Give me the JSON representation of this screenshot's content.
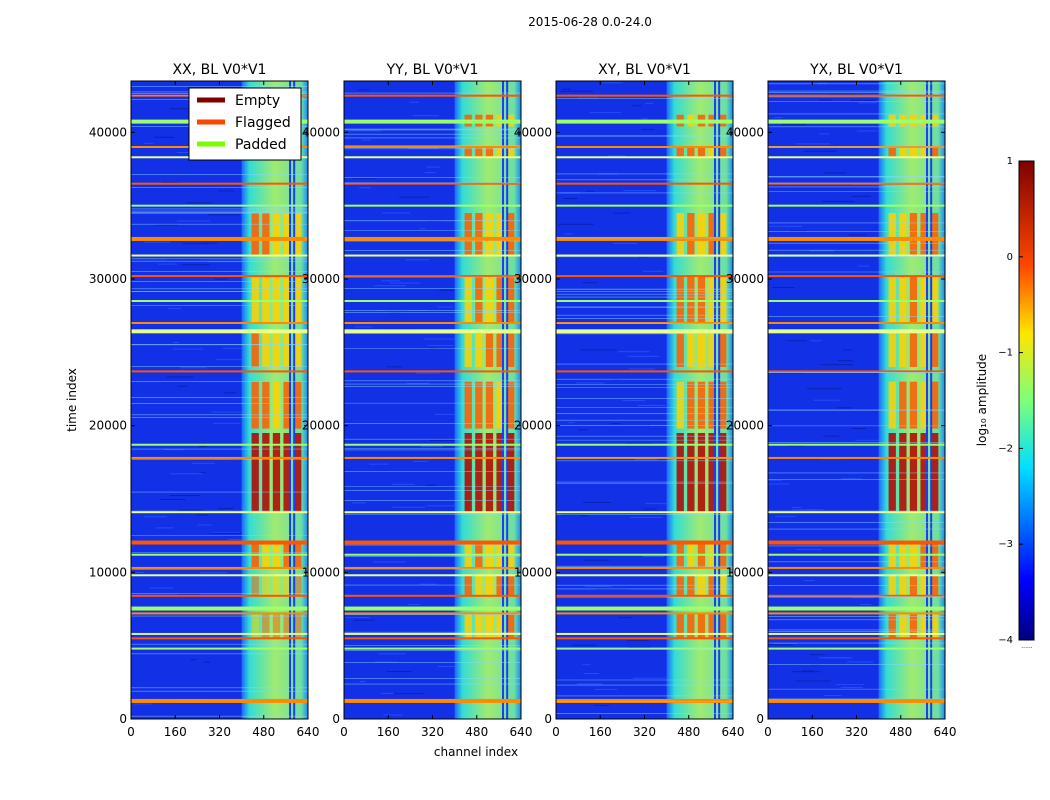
{
  "figure": {
    "suptitle": "2015-06-28 0.0-24.0",
    "ylabel": "time index",
    "xlabel": "channel index"
  },
  "chart_data": {
    "type": "heatmap",
    "panels": [
      {
        "title": "XX, BL V0*V1",
        "polarization": "XX"
      },
      {
        "title": "YY, BL V0*V1",
        "polarization": "YY"
      },
      {
        "title": "XY, BL V0*V1",
        "polarization": "XY"
      },
      {
        "title": "YX, BL V0*V1",
        "polarization": "YX"
      }
    ],
    "xlim": [
      0,
      640
    ],
    "ylim": [
      0,
      43500
    ],
    "xticks": [
      0,
      160,
      320,
      480,
      640
    ],
    "yticks": [
      0,
      10000,
      20000,
      30000,
      40000
    ],
    "yticks_shown_on": "all panels",
    "legend": {
      "placement": "top-right of first panel",
      "entries": [
        {
          "label": "Empty",
          "color": "#800000"
        },
        {
          "label": "Flagged",
          "color": "#ff4500"
        },
        {
          "label": "Padded",
          "color": "#7cfc00"
        }
      ]
    },
    "colorbar": {
      "label": "log₁₀ amplitude",
      "range": [
        -4,
        1
      ],
      "ticks": [
        "1",
        "0",
        "−1",
        "−2",
        "−3",
        "−4"
      ],
      "colormap": "jet",
      "footnote": "......"
    },
    "signal_band_channels": [
      400,
      640
    ],
    "notes_channel_lines": [
      575,
      590
    ],
    "flagged_time_rows": [
      1300,
      4800,
      5500,
      5800,
      7200,
      7600,
      8400,
      9800,
      10300,
      11200,
      12100,
      14100,
      17800,
      18700,
      23700,
      26500,
      27000,
      28500,
      30200,
      31600,
      32800,
      35000,
      36500,
      38300,
      39000,
      40800,
      42500
    ]
  }
}
